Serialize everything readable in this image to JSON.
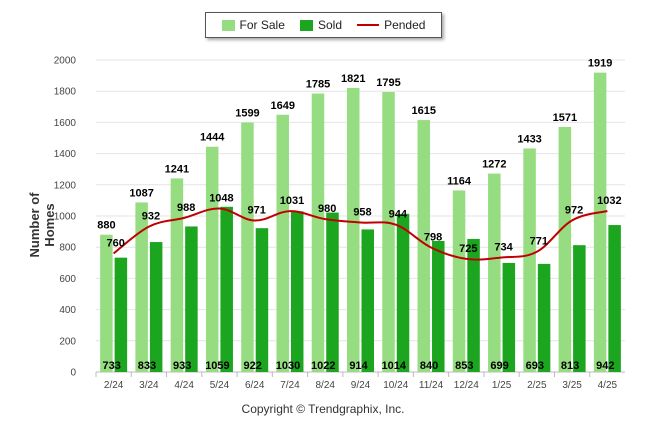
{
  "chart_data": {
    "type": "bar",
    "title": "",
    "xlabel": "",
    "ylabel": "Number of Homes",
    "ylim": [
      0,
      2000
    ],
    "yticks": [
      0,
      200,
      400,
      600,
      800,
      1000,
      1200,
      1400,
      1600,
      1800,
      2000
    ],
    "grid": true,
    "legend_position": "top-center",
    "categories": [
      "2/24",
      "3/24",
      "4/24",
      "5/24",
      "6/24",
      "7/24",
      "8/24",
      "9/24",
      "10/24",
      "11/24",
      "12/24",
      "1/25",
      "2/25",
      "3/25",
      "4/25"
    ],
    "series": [
      {
        "name": "For Sale",
        "kind": "bar",
        "color": "#96dd82",
        "values": [
          880,
          1087,
          1241,
          1444,
          1599,
          1649,
          1785,
          1821,
          1795,
          1615,
          1164,
          1272,
          1433,
          1571,
          1919
        ]
      },
      {
        "name": "Sold",
        "kind": "bar",
        "color": "#1ca51f",
        "values": [
          733,
          833,
          933,
          1059,
          922,
          1030,
          1022,
          914,
          1014,
          840,
          853,
          699,
          693,
          813,
          942
        ]
      },
      {
        "name": "Pended",
        "kind": "line",
        "color": "#c00000",
        "values": [
          760,
          932,
          988,
          1048,
          971,
          1031,
          980,
          958,
          944,
          798,
          725,
          734,
          771,
          972,
          1032
        ]
      }
    ]
  },
  "legend": {
    "for_sale": "For Sale",
    "sold": "Sold",
    "pended": "Pended"
  },
  "footer": {
    "copyright": "Copyright © Trendgraphix, Inc."
  }
}
